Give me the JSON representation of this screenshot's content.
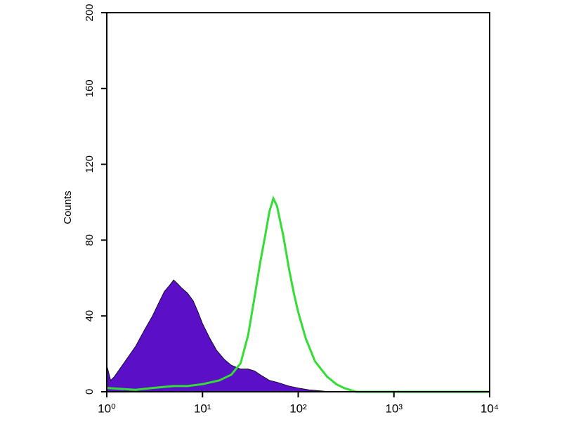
{
  "chart_data": {
    "type": "area",
    "y_label": "Counts",
    "log_x": true,
    "xlim": [
      1,
      10000
    ],
    "xticks": [
      {
        "value": 1,
        "label": "10⁰"
      },
      {
        "value": 10,
        "label": "10¹"
      },
      {
        "value": 100,
        "label": "10²"
      },
      {
        "value": 1000,
        "label": "10³"
      },
      {
        "value": 10000,
        "label": "10⁴"
      }
    ],
    "ylim": [
      0,
      200
    ],
    "yticks": [
      0,
      40,
      80,
      120,
      160,
      200
    ],
    "series": [
      {
        "kind": "area",
        "color": "#5b0fc7",
        "x": [
          1,
          1.1,
          1.2,
          1.5,
          2,
          2.5,
          3,
          3.5,
          4,
          4.5,
          5,
          5.5,
          6,
          7,
          8,
          9,
          10,
          12,
          14,
          17,
          20,
          25,
          30,
          35,
          40,
          50,
          60,
          80,
          100,
          130,
          170,
          220,
          300
        ],
        "values": [
          14,
          6,
          8,
          15,
          24,
          33,
          40,
          47,
          53,
          56,
          59,
          57,
          55,
          52,
          48,
          42,
          36,
          28,
          22,
          17,
          14,
          12,
          12,
          11,
          9,
          6,
          5,
          3,
          2,
          1,
          0.5,
          0,
          0
        ]
      },
      {
        "kind": "line",
        "color": "#33dd33",
        "x": [
          1,
          2,
          3,
          5,
          7,
          10,
          15,
          20,
          25,
          30,
          35,
          40,
          45,
          50,
          55,
          60,
          70,
          80,
          90,
          100,
          120,
          150,
          200,
          250,
          300,
          400,
          1000,
          10000
        ],
        "values": [
          2,
          1,
          2,
          3,
          3,
          4,
          6,
          9,
          15,
          30,
          50,
          68,
          82,
          95,
          102,
          98,
          82,
          65,
          52,
          42,
          28,
          16,
          8,
          4,
          2,
          0,
          0,
          0
        ]
      }
    ]
  }
}
